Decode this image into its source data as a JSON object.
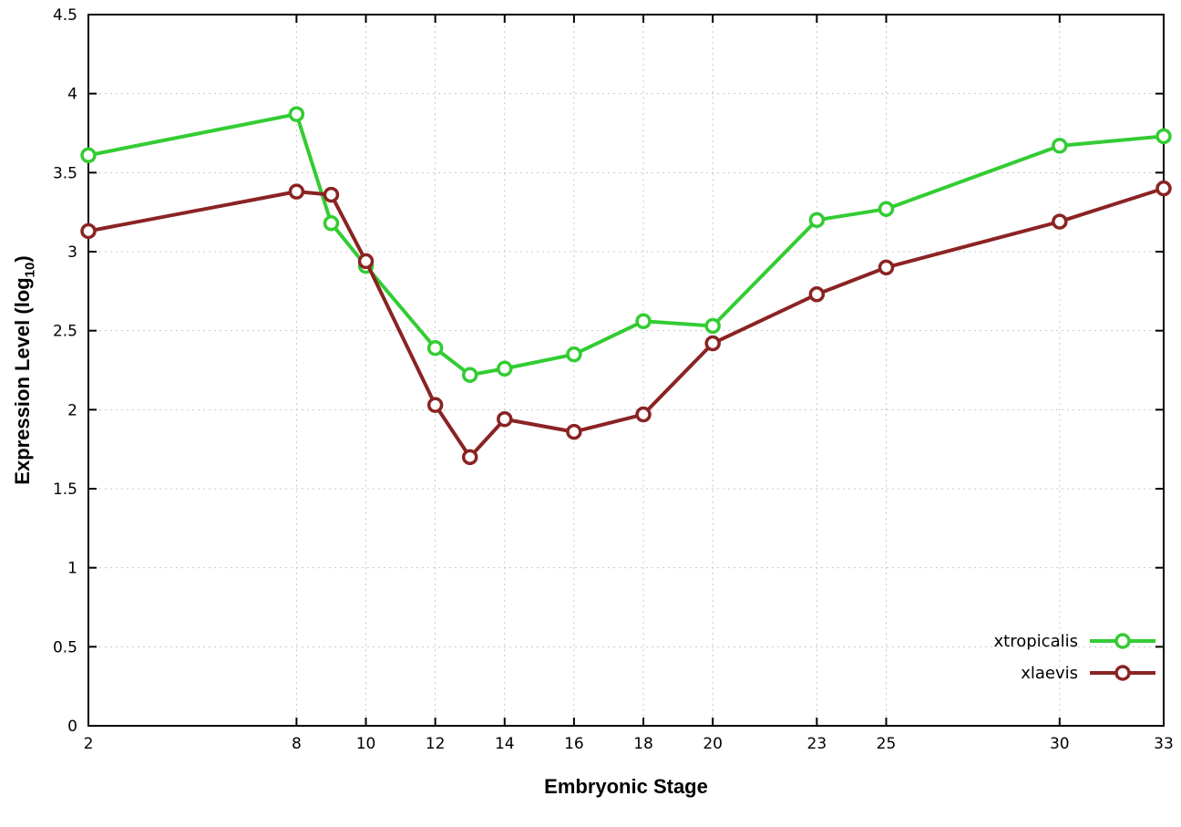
{
  "chart_data": {
    "type": "line",
    "title": "",
    "xlabel": "Embryonic Stage",
    "ylabel_parts": {
      "pre": "Expression Level (log",
      "sub": "10",
      "post": ")"
    },
    "xlim": [
      2,
      33
    ],
    "ylim": [
      0,
      4.5
    ],
    "x_ticks": [
      2,
      8,
      10,
      12,
      14,
      16,
      18,
      20,
      23,
      25,
      30,
      33
    ],
    "y_ticks": [
      0,
      0.5,
      1,
      1.5,
      2,
      2.5,
      3,
      3.5,
      4,
      4.5
    ],
    "grid": true,
    "grid_style": "dotted",
    "grid_color": "#c8c8c8",
    "border_color": "#000000",
    "legend_position": "bottom-right",
    "x": [
      2,
      8,
      9,
      10,
      12,
      13,
      14,
      16,
      18,
      20,
      23,
      25,
      30,
      33
    ],
    "series": [
      {
        "name": "xtropicalis",
        "color": "#33cc33",
        "values": [
          3.61,
          3.87,
          3.18,
          2.91,
          2.39,
          2.22,
          2.26,
          2.35,
          2.56,
          2.53,
          3.2,
          3.27,
          3.67,
          3.73
        ]
      },
      {
        "name": "xlaevis",
        "color": "#8b2323",
        "values": [
          3.13,
          3.38,
          3.36,
          2.94,
          2.03,
          1.7,
          1.94,
          1.86,
          1.97,
          2.42,
          2.73,
          2.9,
          3.19,
          3.4
        ]
      }
    ]
  }
}
